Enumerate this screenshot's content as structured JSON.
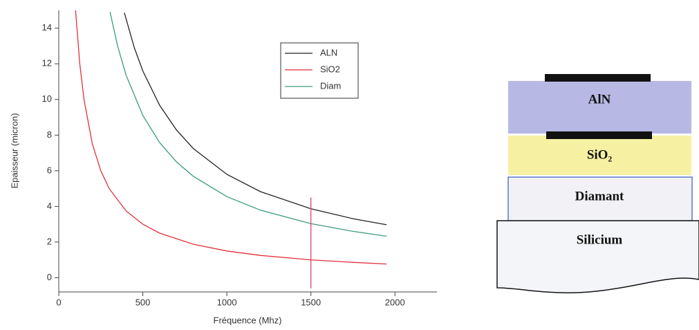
{
  "chart_data": {
    "type": "line",
    "x_label": "Fréquence (Mhz)",
    "y_label": "Epaisseur (micron)",
    "xlim": [
      0,
      2250
    ],
    "ylim": [
      -0.8,
      15
    ],
    "xticks": [
      0,
      500,
      1000,
      1500,
      2000
    ],
    "yticks": [
      0,
      2,
      4,
      6,
      8,
      10,
      12,
      14
    ],
    "series": [
      {
        "name": "ALN",
        "color": "#222222",
        "x": [
          390,
          450,
          500,
          600,
          700,
          800,
          1000,
          1200,
          1500,
          1750,
          1950
        ],
        "values": [
          14.87,
          12.89,
          11.6,
          9.67,
          8.29,
          7.25,
          5.8,
          4.83,
          3.87,
          3.31,
          2.97
        ]
      },
      {
        "name": "SiO2",
        "color": "#e0303a",
        "x": [
          100,
          125,
          150,
          200,
          250,
          300,
          400,
          500,
          600,
          800,
          1000,
          1200,
          1500,
          1750,
          1950
        ],
        "values": [
          15,
          12,
          10,
          7.5,
          6,
          5,
          3.75,
          3.0,
          2.5,
          1.88,
          1.5,
          1.25,
          1.0,
          0.86,
          0.77
        ]
      },
      {
        "name": "Diam",
        "color": "#3a9a7a",
        "x": [
          305,
          350,
          400,
          500,
          600,
          700,
          800,
          1000,
          1200,
          1500,
          1750,
          1950
        ],
        "values": [
          14.92,
          13.0,
          11.38,
          9.1,
          7.58,
          6.5,
          5.69,
          4.55,
          3.79,
          3.03,
          2.6,
          2.33
        ]
      }
    ],
    "marker": {
      "color": "#e0407a",
      "x": 1500,
      "y": [
        -0.6,
        4.5
      ]
    }
  },
  "diagram": {
    "layers": [
      "AlN",
      "SiO₂",
      "Diamant",
      "Silicium"
    ]
  }
}
